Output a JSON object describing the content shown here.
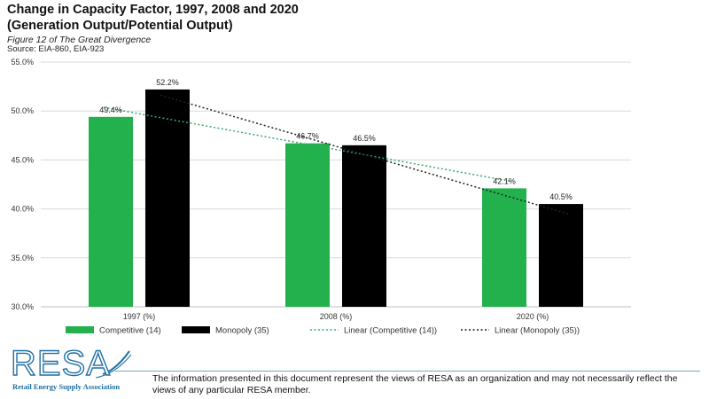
{
  "header": {
    "title_line1": "Change in Capacity Factor, 1997, 2008 and 2020",
    "title_line2": "(Generation Output/Potential Output)",
    "figure_caption": "Figure 12 of The Great Divergence",
    "source": "Source: EIA-860, EIA-923"
  },
  "colors": {
    "competitive": "#22b14c",
    "monopoly": "#000000",
    "trend_competitive": "#3aa86a",
    "trend_monopoly": "#222222",
    "logo": "#1f6fa3"
  },
  "chart_data": {
    "type": "bar",
    "categories": [
      "1997 (%)",
      "2008 (%)",
      "2020 (%)"
    ],
    "series": [
      {
        "name": "Competitive (14)",
        "values": [
          49.4,
          46.7,
          42.1
        ],
        "data_labels": [
          "49.4%",
          "46.7%",
          "42.1%"
        ]
      },
      {
        "name": "Monopoly (35)",
        "values": [
          52.2,
          46.5,
          40.5
        ],
        "data_labels": [
          "52.2%",
          "46.5%",
          "40.5%"
        ]
      }
    ],
    "trendlines": [
      {
        "name": "Linear (Competitive (14))",
        "series": "Competitive (14)",
        "style": "dotted"
      },
      {
        "name": "Linear (Monopoly (35))",
        "series": "Monopoly (35)",
        "style": "dotted"
      }
    ],
    "ylim": [
      30,
      55
    ],
    "yticks": [
      "30.0%",
      "35.0%",
      "40.0%",
      "45.0%",
      "50.0%",
      "55.0%"
    ],
    "grid": true,
    "legend": "bottom"
  },
  "footer": {
    "logo_text": "RESA",
    "logo_tagline": "Retail Energy Supply Association",
    "disclaimer": "The information presented in this document represent the views of RESA as an organization and may not necessarily reflect the views of any particular RESA member."
  }
}
